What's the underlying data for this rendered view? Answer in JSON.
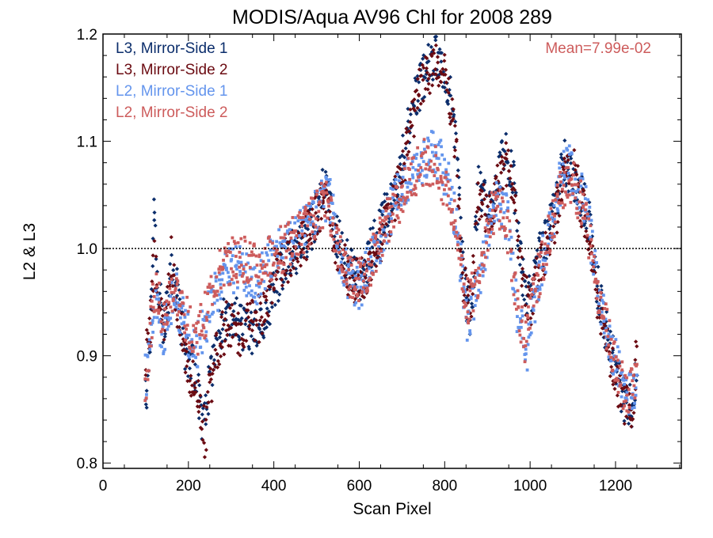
{
  "chart_data": {
    "type": "scatter",
    "title": "MODIS/Aqua AV96 Chl for 2008 289",
    "xlabel": "Scan Pixel",
    "ylabel": "L2 & L3",
    "xlim": [
      0,
      1354
    ],
    "ylim": [
      0.795,
      1.2
    ],
    "x_ticks": [
      0,
      200,
      400,
      600,
      800,
      1000,
      1200
    ],
    "y_ticks": [
      0.8,
      0.9,
      1.0,
      1.1,
      1.2
    ],
    "y_tick_labels": [
      "0.8",
      "0.9",
      "1.0",
      "1.1",
      "1.2"
    ],
    "reference_line": {
      "y": 1.0,
      "style": "dotted"
    },
    "annotation": {
      "text": "Mean=7.99e-02",
      "color": "#cd5c5c"
    },
    "legend_placement": "top-left",
    "series": [
      {
        "name": "L3, Mirror-Side 1",
        "color": "#0b2d6b",
        "marker": "diamond",
        "trend": [
          [
            100,
            0.86
          ],
          [
            110,
            0.92
          ],
          [
            120,
            1.03
          ],
          [
            130,
            0.96
          ],
          [
            140,
            0.93
          ],
          [
            150,
            0.95
          ],
          [
            160,
            0.98
          ],
          [
            170,
            0.97
          ],
          [
            180,
            0.94
          ],
          [
            190,
            0.91
          ],
          [
            200,
            0.9
          ],
          [
            210,
            0.89
          ],
          [
            220,
            0.88
          ],
          [
            230,
            0.84
          ],
          [
            240,
            0.84
          ],
          [
            250,
            0.88
          ],
          [
            270,
            0.92
          ],
          [
            290,
            0.94
          ],
          [
            320,
            0.93
          ],
          [
            350,
            0.92
          ],
          [
            380,
            0.93
          ],
          [
            400,
            0.96
          ],
          [
            430,
            0.99
          ],
          [
            460,
            1.0
          ],
          [
            490,
            1.02
          ],
          [
            520,
            1.06
          ],
          [
            540,
            1.02
          ],
          [
            560,
            1.0
          ],
          [
            580,
            0.98
          ],
          [
            600,
            0.97
          ],
          [
            620,
            0.99
          ],
          [
            640,
            1.01
          ],
          [
            660,
            1.03
          ],
          [
            680,
            1.05
          ],
          [
            700,
            1.08
          ],
          [
            720,
            1.12
          ],
          [
            740,
            1.15
          ],
          [
            760,
            1.17
          ],
          [
            780,
            1.18
          ],
          [
            800,
            1.17
          ],
          [
            820,
            1.13
          ],
          [
            830,
            1.08
          ],
          [
            840,
            0.99
          ],
          [
            860,
            0.93
          ],
          [
            880,
            1.06
          ],
          [
            900,
            1.04
          ],
          [
            920,
            1.06
          ],
          [
            940,
            1.09
          ],
          [
            960,
            1.07
          ],
          [
            980,
            0.98
          ],
          [
            1000,
            0.95
          ],
          [
            1020,
            0.99
          ],
          [
            1040,
            1.01
          ],
          [
            1060,
            1.04
          ],
          [
            1080,
            1.08
          ],
          [
            1100,
            1.07
          ],
          [
            1120,
            1.05
          ],
          [
            1140,
            1.02
          ],
          [
            1160,
            0.96
          ],
          [
            1180,
            0.92
          ],
          [
            1200,
            0.89
          ],
          [
            1220,
            0.86
          ],
          [
            1240,
            0.85
          ],
          [
            1250,
            0.9
          ]
        ]
      },
      {
        "name": "L3, Mirror-Side 2",
        "color": "#6b0b12",
        "marker": "diamond",
        "trend": [
          [
            100,
            0.9
          ],
          [
            110,
            0.93
          ],
          [
            120,
            0.99
          ],
          [
            130,
            0.96
          ],
          [
            140,
            0.92
          ],
          [
            150,
            0.94
          ],
          [
            160,
            0.99
          ],
          [
            170,
            0.96
          ],
          [
            180,
            0.93
          ],
          [
            190,
            0.91
          ],
          [
            200,
            0.89
          ],
          [
            210,
            0.88
          ],
          [
            220,
            0.87
          ],
          [
            230,
            0.85
          ],
          [
            240,
            0.82
          ],
          [
            250,
            0.87
          ],
          [
            270,
            0.91
          ],
          [
            290,
            0.93
          ],
          [
            320,
            0.92
          ],
          [
            350,
            0.93
          ],
          [
            380,
            0.94
          ],
          [
            400,
            0.97
          ],
          [
            430,
            0.99
          ],
          [
            460,
            1.0
          ],
          [
            490,
            1.02
          ],
          [
            520,
            1.05
          ],
          [
            540,
            1.01
          ],
          [
            560,
            0.99
          ],
          [
            580,
            0.97
          ],
          [
            600,
            0.97
          ],
          [
            620,
            0.98
          ],
          [
            640,
            1.0
          ],
          [
            660,
            1.02
          ],
          [
            680,
            1.04
          ],
          [
            700,
            1.07
          ],
          [
            720,
            1.11
          ],
          [
            740,
            1.15
          ],
          [
            760,
            1.16
          ],
          [
            780,
            1.17
          ],
          [
            800,
            1.16
          ],
          [
            820,
            1.12
          ],
          [
            830,
            1.07
          ],
          [
            840,
            0.98
          ],
          [
            860,
            0.94
          ],
          [
            880,
            1.05
          ],
          [
            900,
            1.03
          ],
          [
            920,
            1.05
          ],
          [
            940,
            1.08
          ],
          [
            960,
            1.06
          ],
          [
            980,
            0.97
          ],
          [
            1000,
            0.94
          ],
          [
            1020,
            0.98
          ],
          [
            1040,
            1.0
          ],
          [
            1060,
            1.03
          ],
          [
            1080,
            1.07
          ],
          [
            1100,
            1.08
          ],
          [
            1120,
            1.04
          ],
          [
            1140,
            1.01
          ],
          [
            1160,
            0.95
          ],
          [
            1180,
            0.91
          ],
          [
            1200,
            0.88
          ],
          [
            1220,
            0.86
          ],
          [
            1240,
            0.84
          ],
          [
            1250,
            0.91
          ]
        ]
      },
      {
        "name": "L2, Mirror-Side 1",
        "color": "#6495ed",
        "marker": "square",
        "trend": [
          [
            100,
            0.88
          ],
          [
            110,
            0.91
          ],
          [
            120,
            0.95
          ],
          [
            130,
            0.94
          ],
          [
            140,
            0.92
          ],
          [
            150,
            0.93
          ],
          [
            160,
            0.95
          ],
          [
            170,
            0.96
          ],
          [
            180,
            0.94
          ],
          [
            190,
            0.93
          ],
          [
            200,
            0.92
          ],
          [
            220,
            0.91
          ],
          [
            240,
            0.93
          ],
          [
            260,
            0.96
          ],
          [
            280,
            0.97
          ],
          [
            300,
            0.98
          ],
          [
            330,
            0.98
          ],
          [
            360,
            0.97
          ],
          [
            390,
            0.99
          ],
          [
            420,
            1.0
          ],
          [
            450,
            1.01
          ],
          [
            480,
            1.02
          ],
          [
            510,
            1.04
          ],
          [
            530,
            1.05
          ],
          [
            550,
            1.0
          ],
          [
            570,
            0.98
          ],
          [
            590,
            0.96
          ],
          [
            610,
            0.97
          ],
          [
            630,
            0.99
          ],
          [
            650,
            1.01
          ],
          [
            670,
            1.03
          ],
          [
            690,
            1.05
          ],
          [
            710,
            1.06
          ],
          [
            730,
            1.07
          ],
          [
            750,
            1.08
          ],
          [
            770,
            1.09
          ],
          [
            790,
            1.08
          ],
          [
            810,
            1.06
          ],
          [
            830,
            1.02
          ],
          [
            850,
            0.93
          ],
          [
            870,
            0.95
          ],
          [
            890,
            0.99
          ],
          [
            910,
            1.03
          ],
          [
            930,
            1.05
          ],
          [
            950,
            1.02
          ],
          [
            970,
            0.94
          ],
          [
            990,
            0.9
          ],
          [
            1010,
            0.95
          ],
          [
            1030,
            0.99
          ],
          [
            1050,
            1.02
          ],
          [
            1070,
            1.06
          ],
          [
            1090,
            1.08
          ],
          [
            1110,
            1.06
          ],
          [
            1130,
            1.04
          ],
          [
            1150,
            0.99
          ],
          [
            1170,
            0.94
          ],
          [
            1190,
            0.91
          ],
          [
            1210,
            0.88
          ],
          [
            1230,
            0.86
          ],
          [
            1250,
            0.88
          ]
        ]
      },
      {
        "name": "L2, Mirror-Side 2",
        "color": "#cd5c5c",
        "marker": "square",
        "trend": [
          [
            100,
            0.87
          ],
          [
            110,
            0.92
          ],
          [
            120,
            0.96
          ],
          [
            130,
            0.95
          ],
          [
            140,
            0.93
          ],
          [
            150,
            0.94
          ],
          [
            160,
            0.96
          ],
          [
            170,
            0.96
          ],
          [
            180,
            0.95
          ],
          [
            190,
            0.94
          ],
          [
            200,
            0.93
          ],
          [
            220,
            0.92
          ],
          [
            240,
            0.94
          ],
          [
            260,
            0.97
          ],
          [
            280,
            0.98
          ],
          [
            300,
            0.99
          ],
          [
            330,
            0.99
          ],
          [
            360,
            0.98
          ],
          [
            390,
            0.99
          ],
          [
            420,
            1.0
          ],
          [
            450,
            1.01
          ],
          [
            480,
            1.02
          ],
          [
            510,
            1.04
          ],
          [
            530,
            1.04
          ],
          [
            550,
            1.0
          ],
          [
            570,
            0.98
          ],
          [
            590,
            0.97
          ],
          [
            610,
            0.97
          ],
          [
            630,
            0.99
          ],
          [
            650,
            1.01
          ],
          [
            670,
            1.03
          ],
          [
            690,
            1.04
          ],
          [
            710,
            1.06
          ],
          [
            730,
            1.07
          ],
          [
            750,
            1.08
          ],
          [
            770,
            1.08
          ],
          [
            790,
            1.07
          ],
          [
            810,
            1.05
          ],
          [
            830,
            1.01
          ],
          [
            850,
            0.95
          ],
          [
            870,
            0.96
          ],
          [
            890,
            1.0
          ],
          [
            910,
            1.03
          ],
          [
            930,
            1.04
          ],
          [
            950,
            1.01
          ],
          [
            970,
            0.95
          ],
          [
            990,
            0.91
          ],
          [
            1010,
            0.96
          ],
          [
            1030,
            0.99
          ],
          [
            1050,
            1.02
          ],
          [
            1070,
            1.05
          ],
          [
            1090,
            1.07
          ],
          [
            1110,
            1.05
          ],
          [
            1130,
            1.03
          ],
          [
            1150,
            0.98
          ],
          [
            1170,
            0.94
          ],
          [
            1190,
            0.91
          ],
          [
            1210,
            0.88
          ],
          [
            1230,
            0.86
          ],
          [
            1250,
            0.89
          ]
        ]
      }
    ]
  }
}
